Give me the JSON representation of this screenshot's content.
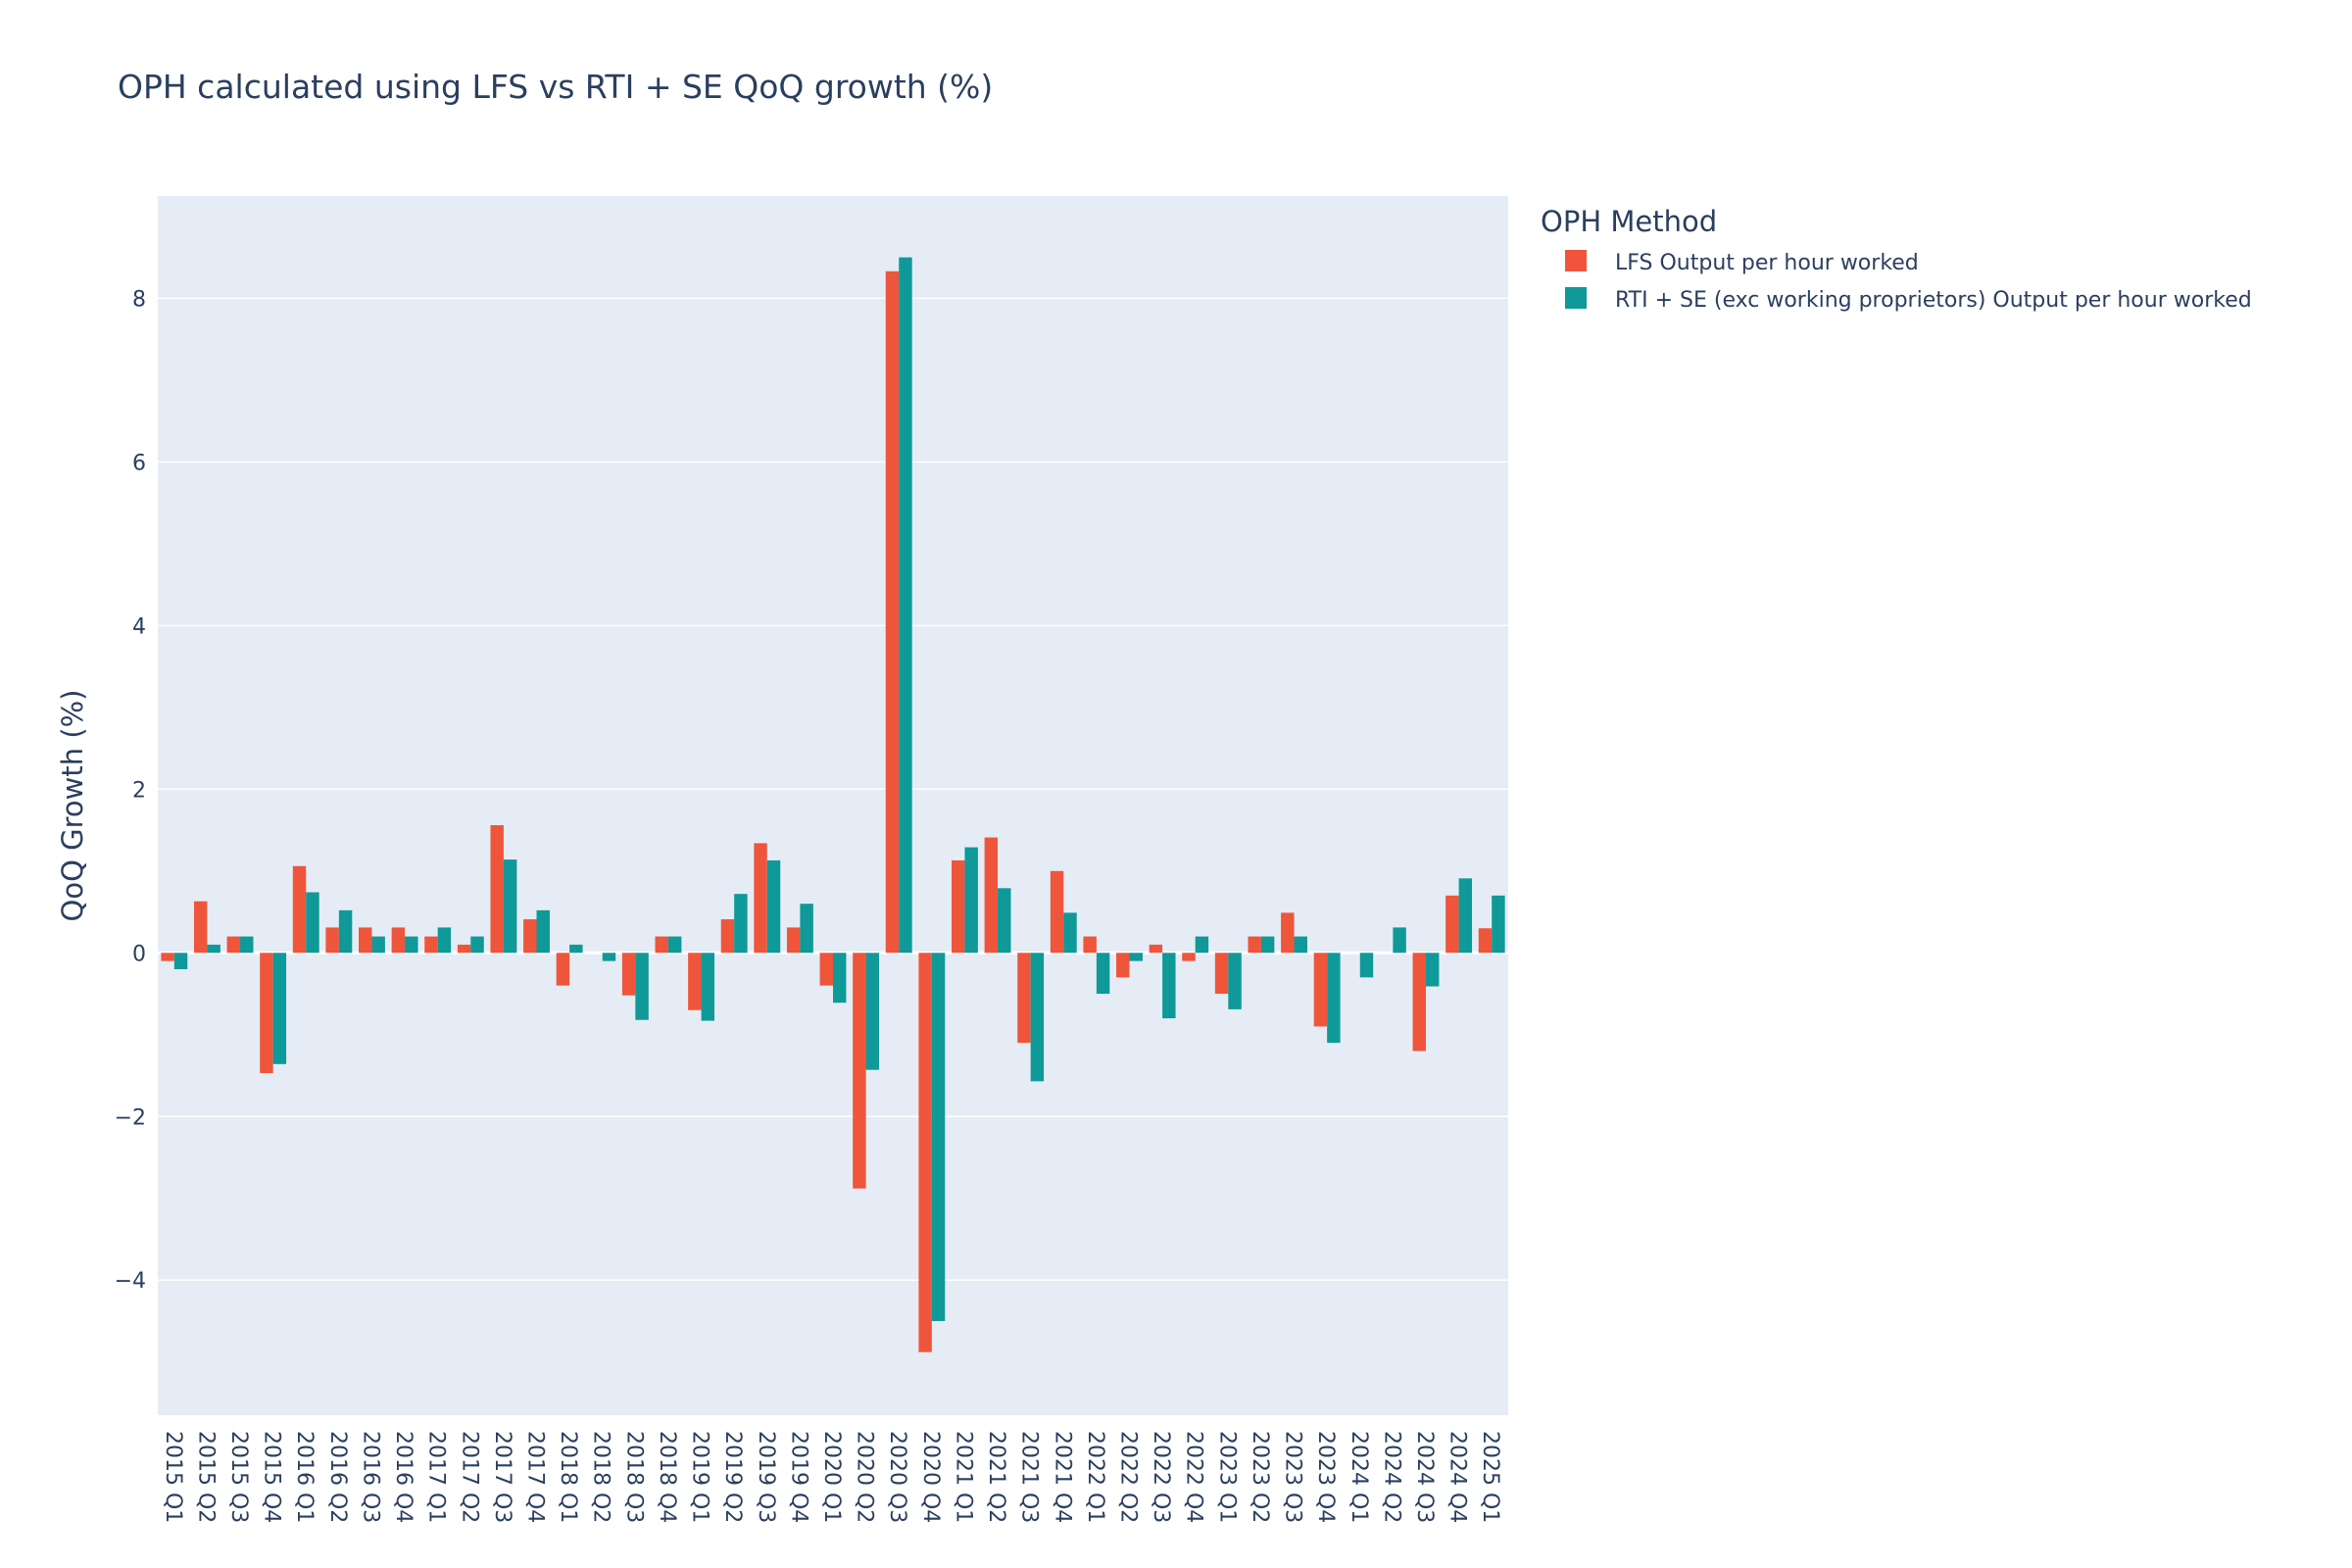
{
  "chart_data": {
    "type": "bar",
    "title": "OPH calculated using LFS vs RTI + SE QoQ growth (%)",
    "xlabel": "",
    "ylabel": "QoQ Growth (%)",
    "ylim": [
      -5.65,
      9.25
    ],
    "yticks": [
      -4,
      -2,
      0,
      2,
      4,
      6,
      8
    ],
    "ytick_labels": [
      "−4",
      "−2",
      "0",
      "2",
      "4",
      "6",
      "8"
    ],
    "grid": true,
    "legend_placement": "top-right, outside plot",
    "legend_title": "OPH Method",
    "categories": [
      "2015 Q1",
      "2015 Q2",
      "2015 Q3",
      "2015 Q4",
      "2016 Q1",
      "2016 Q2",
      "2016 Q3",
      "2016 Q4",
      "2017 Q1",
      "2017 Q2",
      "2017 Q3",
      "2017 Q4",
      "2018 Q1",
      "2018 Q2",
      "2018 Q3",
      "2018 Q4",
      "2019 Q1",
      "2019 Q2",
      "2019 Q3",
      "2019 Q4",
      "2020 Q1",
      "2020 Q2",
      "2020 Q3",
      "2020 Q4",
      "2021 Q1",
      "2021 Q2",
      "2021 Q3",
      "2021 Q4",
      "2022 Q1",
      "2022 Q2",
      "2022 Q3",
      "2022 Q4",
      "2023 Q1",
      "2023 Q2",
      "2023 Q3",
      "2023 Q4",
      "2024 Q1",
      "2024 Q2",
      "2024 Q3",
      "2024 Q4",
      "2025 Q1"
    ],
    "series": [
      {
        "name": "LFS Output per hour worked",
        "color": "#EF553B",
        "values": [
          -0.1,
          0.63,
          0.2,
          -1.47,
          1.06,
          0.31,
          0.31,
          0.31,
          0.2,
          0.1,
          1.56,
          0.41,
          -0.4,
          0.0,
          -0.52,
          0.2,
          -0.7,
          0.41,
          1.34,
          0.31,
          -0.4,
          -2.88,
          8.33,
          -4.88,
          1.13,
          1.41,
          -1.1,
          1.0,
          0.2,
          -0.3,
          0.1,
          -0.1,
          -0.5,
          0.2,
          0.49,
          -0.9,
          0.0,
          0.0,
          -1.2,
          0.7,
          0.3
        ]
      },
      {
        "name": "RTI + SE (exc working proprietors) Output per hour worked",
        "color": "#0F9999",
        "values": [
          -0.2,
          0.1,
          0.2,
          -1.36,
          0.74,
          0.52,
          0.2,
          0.2,
          0.31,
          0.2,
          1.14,
          0.52,
          0.1,
          -0.1,
          -0.82,
          0.2,
          -0.83,
          0.72,
          1.13,
          0.6,
          -0.61,
          -1.43,
          8.5,
          -4.5,
          1.29,
          0.79,
          -1.57,
          0.49,
          -0.5,
          -0.1,
          -0.8,
          0.2,
          -0.69,
          0.2,
          0.2,
          -1.1,
          -0.3,
          0.31,
          -0.41,
          0.91,
          0.7
        ]
      }
    ]
  }
}
